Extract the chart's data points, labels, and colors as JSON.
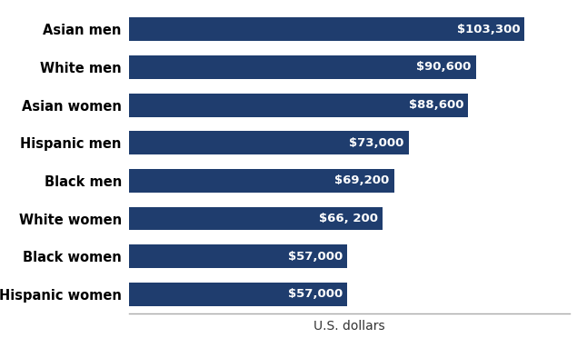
{
  "categories": [
    "Asian men",
    "White men",
    "Asian women",
    "Hispanic men",
    "Black men",
    "White women",
    "Black women",
    "Hispanic women"
  ],
  "values": [
    103300,
    90600,
    88600,
    73000,
    69200,
    66200,
    57000,
    57000
  ],
  "labels": [
    "$103,300",
    "$90,600",
    "$88,600",
    "$73,000",
    "$69,200",
    "$66, 200",
    "$57,000",
    "$57,000"
  ],
  "bar_color": "#1f3d6e",
  "text_color": "#ffffff",
  "label_color": "#000000",
  "xlabel": "U.S. dollars",
  "background_color": "#ffffff",
  "bar_height": 0.62,
  "xlim": [
    0,
    115000
  ],
  "label_fontsize": 10.5,
  "value_fontsize": 9.5,
  "xlabel_fontsize": 10
}
